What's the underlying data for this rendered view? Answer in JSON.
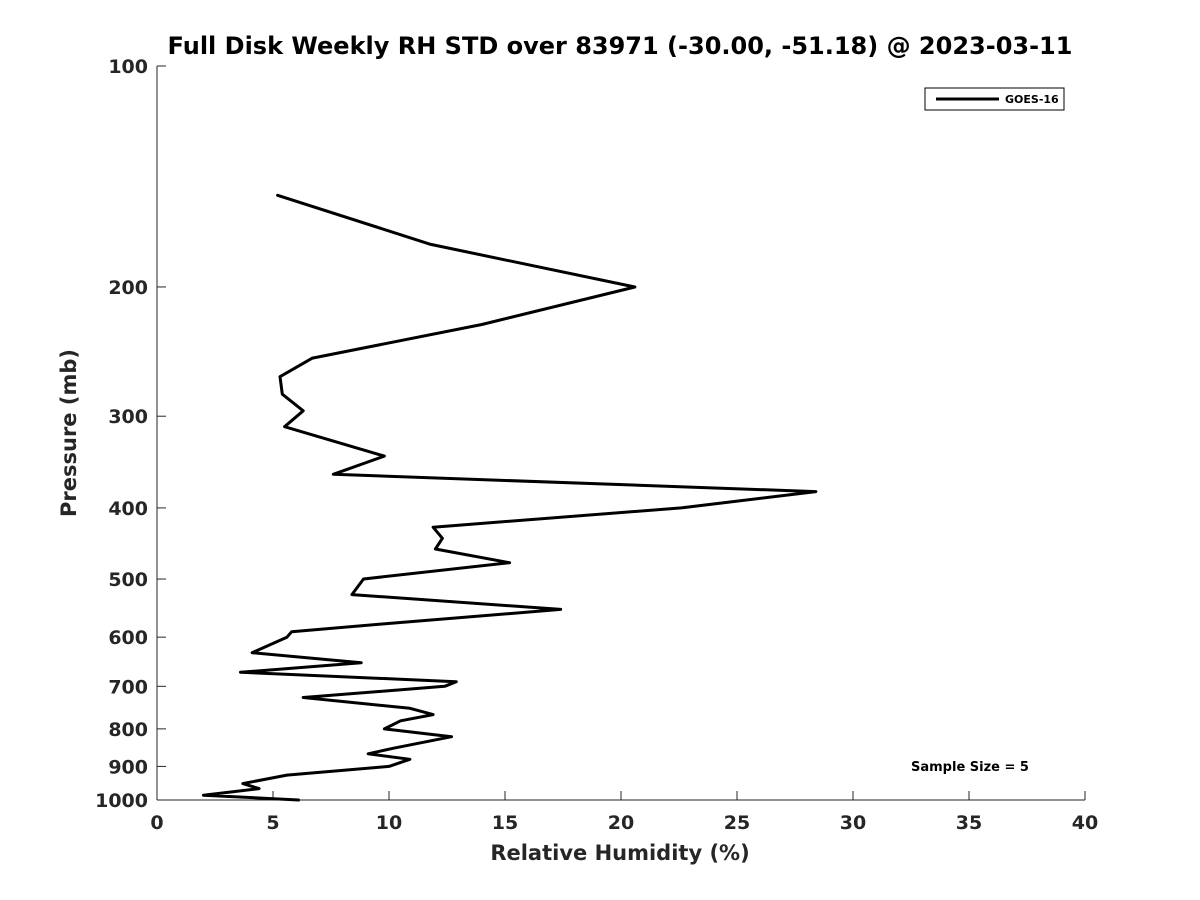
{
  "chart_data": {
    "type": "line",
    "title": "Full Disk Weekly RH STD over 83971 (-30.00, -51.18) @ 2023-03-11",
    "xlabel": "Relative Humidity (%)",
    "ylabel": "Pressure (mb)",
    "xlim": [
      0,
      40
    ],
    "ylim": [
      100,
      1000
    ],
    "yscale": "log",
    "y_reversed": true,
    "xticks": [
      "0",
      "5",
      "10",
      "15",
      "20",
      "25",
      "30",
      "35",
      "40"
    ],
    "yticks": [
      "100",
      "200",
      "300",
      "400",
      "500",
      "600",
      "700",
      "800",
      "900",
      "1000"
    ],
    "grid": false,
    "legend_position": "top-right",
    "note": "Sample Size = 5",
    "series": [
      {
        "name": "GOES-16",
        "color": "#000000",
        "x": [
          5.2,
          11.8,
          20.6,
          14.0,
          6.7,
          5.3,
          5.4,
          6.3,
          5.5,
          9.8,
          7.6,
          28.4,
          22.6,
          11.9,
          12.3,
          12.0,
          15.2,
          8.9,
          8.4,
          17.4,
          9.9,
          5.8,
          5.6,
          4.1,
          8.8,
          3.6,
          12.9,
          12.4,
          6.3,
          10.9,
          11.9,
          10.5,
          9.8,
          12.7,
          10.2,
          9.1,
          10.9,
          10.0,
          5.6,
          3.7,
          4.4,
          2.0,
          6.1
        ],
        "y": [
          150,
          175,
          200,
          225,
          250,
          265,
          280,
          295,
          310,
          340,
          360,
          380,
          400,
          425,
          440,
          455,
          475,
          500,
          525,
          550,
          575,
          590,
          600,
          630,
          650,
          670,
          690,
          700,
          725,
          750,
          765,
          780,
          800,
          820,
          850,
          865,
          880,
          900,
          925,
          950,
          965,
          985,
          1000
        ]
      }
    ]
  }
}
